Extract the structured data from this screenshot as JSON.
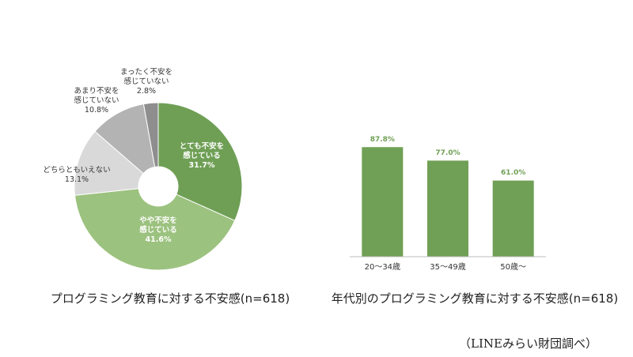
{
  "chart_data": [
    {
      "type": "pie",
      "title": "プログラミング教育に対する不安感(n=618)",
      "categories": [
        "とても不安を\n感じている",
        "やや不安を\n感じている",
        "どちらともいえない",
        "あまり不安を\n感じていない",
        "まったく不安を\n感じていない"
      ],
      "values": [
        31.7,
        41.6,
        13.1,
        10.8,
        2.8
      ],
      "value_labels": [
        "31.7%",
        "41.6%",
        "13.1%",
        "10.8%",
        "2.8%"
      ],
      "colors": [
        "#6f9f55",
        "#9cc27f",
        "#d9d9d9",
        "#b3b3b3",
        "#8e8e8e"
      ],
      "donut": true
    },
    {
      "type": "bar",
      "title": "年代別のプログラミング教育に対する不安感(n=618)",
      "categories": [
        "20～34歳",
        "35～49歳",
        "50歳～"
      ],
      "values": [
        87.8,
        77.0,
        61.0
      ],
      "value_labels": [
        "87.8%",
        "77.0%",
        "61.0%"
      ],
      "color": "#70a055",
      "ylim": [
        0,
        100
      ]
    }
  ],
  "source": "（LINEみらい財団調べ）"
}
